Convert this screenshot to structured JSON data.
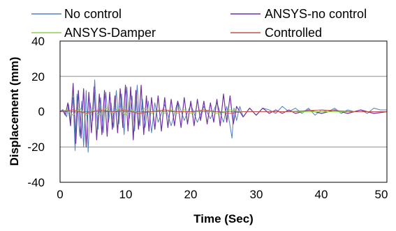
{
  "chart_data": {
    "type": "line",
    "title": "",
    "xlabel": "Time (Sec)",
    "ylabel": "Displacement (mm)",
    "xlim": [
      0,
      50
    ],
    "ylim": [
      -40,
      40
    ],
    "xticks": [
      "0",
      "10",
      "20",
      "30",
      "40",
      "50"
    ],
    "yticks": [
      "40",
      "20",
      "0",
      "-20",
      "-40"
    ],
    "grid": "horizontal",
    "legend_position": "top",
    "series": [
      {
        "name": "No control",
        "color": "#4f81bd",
        "x": [
          0,
          0.5,
          1,
          1.3,
          1.6,
          2,
          2.3,
          2.6,
          3,
          3.3,
          3.6,
          4,
          4.3,
          4.6,
          5,
          5.3,
          5.5,
          5.8,
          6.2,
          6.6,
          7,
          7.4,
          7.8,
          8.2,
          8.6,
          9,
          9.4,
          9.8,
          10.2,
          10.6,
          11,
          11.4,
          11.8,
          12.2,
          12.6,
          13,
          13.5,
          14,
          14.5,
          15,
          16,
          17,
          18,
          19,
          20,
          21,
          22,
          23,
          24,
          25,
          25.5,
          26,
          26.3,
          26.6,
          27,
          27.5,
          28,
          29,
          30,
          31,
          32,
          33,
          34,
          35,
          36,
          37,
          38,
          39,
          40,
          41,
          42,
          43,
          44,
          45,
          46,
          47,
          48,
          49,
          50
        ],
        "values": [
          0,
          1,
          -3,
          4,
          -6,
          8,
          -22,
          10,
          -14,
          6,
          -20,
          12,
          -23,
          5,
          -5,
          18,
          3,
          -10,
          8,
          -12,
          11,
          -6,
          5,
          -9,
          12,
          -7,
          10,
          -13,
          14,
          -4,
          9,
          -11,
          15,
          -8,
          7,
          -9,
          6,
          -12,
          5,
          -6,
          4,
          -8,
          6,
          -5,
          4,
          -6,
          3,
          -4,
          5,
          -6,
          3,
          -8,
          -15,
          2,
          -5,
          3,
          -3,
          2,
          -2,
          2,
          1,
          -1,
          3,
          0,
          2,
          -1,
          2,
          -2,
          1,
          0,
          2,
          -1,
          1,
          0,
          1,
          -1,
          2,
          1,
          1
        ]
      },
      {
        "name": "ANSYS-no control",
        "color": "#7030a0",
        "x": [
          0,
          0.4,
          0.8,
          1.2,
          1.6,
          2,
          2.4,
          2.8,
          3.2,
          3.6,
          4,
          4.4,
          4.8,
          5.2,
          5.6,
          6,
          6.4,
          6.8,
          7.2,
          7.6,
          8,
          8.4,
          8.8,
          9.2,
          9.6,
          10,
          10.4,
          10.8,
          11.2,
          11.6,
          12,
          12.4,
          12.8,
          13.2,
          13.6,
          14,
          14.5,
          15,
          15.5,
          16,
          16.5,
          17,
          17.5,
          18,
          18.5,
          19,
          19.5,
          20,
          20.5,
          21,
          21.5,
          22,
          22.5,
          23,
          23.5,
          24,
          24.5,
          25,
          25.5,
          26,
          26.5,
          27,
          28,
          29,
          30,
          31,
          32,
          33,
          34,
          35,
          36,
          38,
          40,
          42,
          44,
          46,
          48,
          50
        ],
        "values": [
          0,
          1,
          -2,
          5,
          -8,
          16,
          -18,
          12,
          -15,
          13,
          -20,
          11,
          -12,
          14,
          -16,
          10,
          -13,
          12,
          -14,
          11,
          -10,
          9,
          -12,
          13,
          -9,
          15,
          -11,
          14,
          -16,
          12,
          -10,
          15,
          -13,
          9,
          -11,
          8,
          -10,
          9,
          -11,
          8,
          -9,
          7,
          -8,
          6,
          -9,
          8,
          -7,
          6,
          -8,
          7,
          -5,
          6,
          -7,
          5,
          -6,
          7,
          -8,
          10,
          -6,
          9,
          -7,
          3,
          -3,
          2,
          -2,
          2,
          -1,
          1,
          -1,
          1,
          -1,
          1,
          -1,
          1,
          -1,
          1,
          -1,
          0
        ]
      },
      {
        "name": "ANSYS-Damper",
        "color": "#92d050",
        "x": [
          0,
          1,
          2,
          3,
          4,
          5,
          6,
          7,
          8,
          9,
          10,
          11,
          12,
          13,
          14,
          15,
          16,
          17,
          18,
          19,
          20,
          22,
          24,
          26,
          28,
          30,
          35,
          40,
          45,
          50
        ],
        "values": [
          0,
          1,
          -2,
          2,
          -2,
          1,
          -2,
          2,
          -1,
          2,
          -2,
          1,
          -1,
          2,
          -1,
          1,
          -1,
          1,
          -1,
          1,
          -1,
          1,
          -1,
          1,
          0,
          0,
          0,
          0,
          0,
          0
        ]
      },
      {
        "name": "Controlled",
        "color": "#c0504d",
        "x": [
          0,
          2,
          4,
          6,
          8,
          10,
          12,
          14,
          16,
          18,
          20,
          22,
          24,
          26,
          28,
          30,
          35,
          40,
          45,
          50
        ],
        "values": [
          0,
          1,
          -1,
          1,
          0,
          1,
          -1,
          0,
          1,
          0,
          0,
          1,
          0,
          -1,
          0,
          0,
          0,
          1,
          0,
          0
        ]
      }
    ]
  }
}
